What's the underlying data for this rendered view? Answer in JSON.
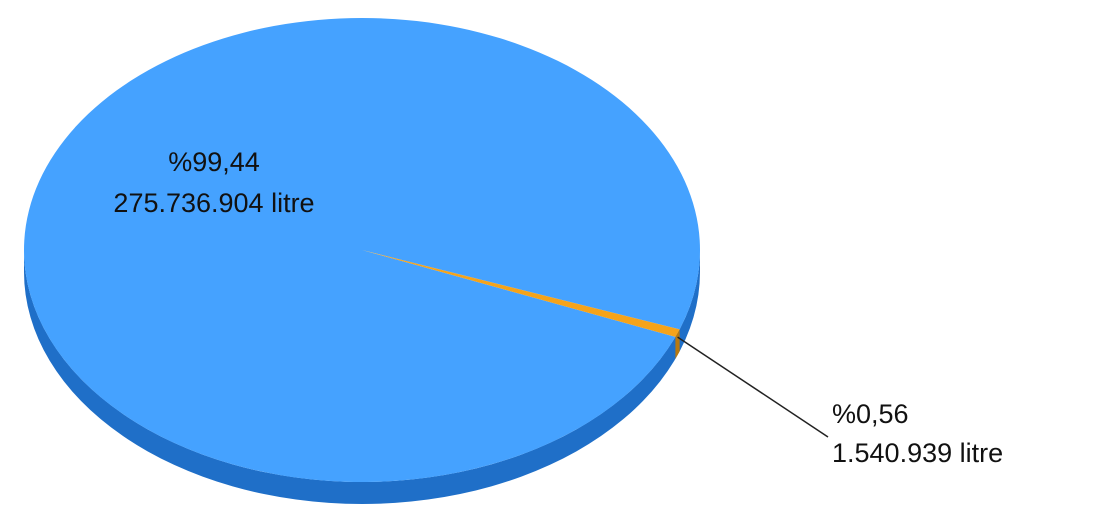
{
  "chart_data": {
    "type": "pie",
    "style": "3d",
    "slices": [
      {
        "percent_label": "%99,44",
        "value_label": "275.736.904 litre",
        "value": 275736904,
        "percent": 99.44,
        "color": "#45a2ff",
        "side_color": "#1f6fc8"
      },
      {
        "percent_label": "%0,56",
        "value_label": "1.540.939 litre",
        "value": 1540939,
        "percent": 0.56,
        "color": "#f5a31a",
        "side_color": "#b8790f"
      }
    ],
    "leader_line_color": "#222222"
  }
}
